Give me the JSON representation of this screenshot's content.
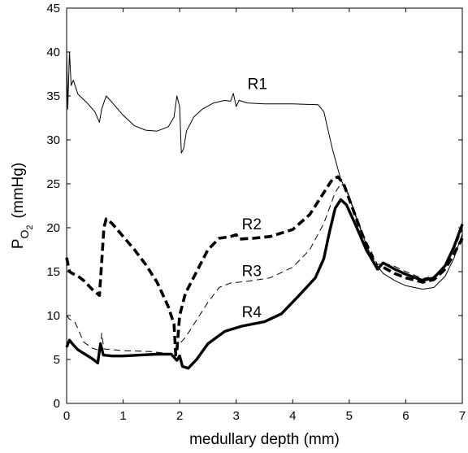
{
  "chart_data": {
    "type": "line",
    "xlabel": "medullary depth (mm)",
    "ylabel": {
      "main": "P",
      "sub1": "O",
      "sub2": "2",
      "unit": "(mmHg)"
    },
    "xlim": [
      0,
      7
    ],
    "ylim": [
      0,
      45
    ],
    "xticks": [
      0,
      1,
      2,
      3,
      4,
      5,
      6,
      7
    ],
    "yticks": [
      0,
      5,
      10,
      15,
      20,
      25,
      30,
      35,
      40,
      45
    ],
    "grid": false,
    "series": [
      {
        "name": "R1",
        "style": "thin-solid",
        "label_at": [
          3.2,
          35.8
        ],
        "points": [
          [
            0,
            40.5
          ],
          [
            0.02,
            33.5
          ],
          [
            0.05,
            40
          ],
          [
            0.08,
            36.2
          ],
          [
            0.12,
            36.8
          ],
          [
            0.2,
            35.2
          ],
          [
            0.35,
            34.3
          ],
          [
            0.5,
            33.2
          ],
          [
            0.58,
            32
          ],
          [
            0.62,
            33.5
          ],
          [
            0.7,
            35
          ],
          [
            0.8,
            34.3
          ],
          [
            1.0,
            32.8
          ],
          [
            1.2,
            31.6
          ],
          [
            1.4,
            31.1
          ],
          [
            1.6,
            31
          ],
          [
            1.8,
            31.5
          ],
          [
            1.9,
            32.6
          ],
          [
            1.95,
            35
          ],
          [
            2.0,
            33.8
          ],
          [
            2.03,
            28.5
          ],
          [
            2.07,
            29
          ],
          [
            2.12,
            31
          ],
          [
            2.25,
            32.6
          ],
          [
            2.4,
            33.5
          ],
          [
            2.6,
            34.2
          ],
          [
            2.8,
            34.5
          ],
          [
            2.9,
            34.4
          ],
          [
            2.95,
            35.3
          ],
          [
            3.0,
            33.8
          ],
          [
            3.05,
            34.5
          ],
          [
            3.2,
            34.2
          ],
          [
            3.5,
            34.1
          ],
          [
            4.0,
            34.1
          ],
          [
            4.45,
            34
          ],
          [
            4.55,
            33.2
          ],
          [
            4.7,
            29
          ],
          [
            4.85,
            25.5
          ],
          [
            5.0,
            23.5
          ],
          [
            5.2,
            19.8
          ],
          [
            5.4,
            16.5
          ],
          [
            5.6,
            14.8
          ],
          [
            5.8,
            14
          ],
          [
            6.0,
            13.4
          ],
          [
            6.3,
            13
          ],
          [
            6.5,
            13.2
          ],
          [
            6.7,
            14.5
          ],
          [
            6.85,
            16.5
          ],
          [
            7.0,
            19.3
          ]
        ]
      },
      {
        "name": "R2",
        "style": "thick-dashed",
        "label_at": [
          3.1,
          19.8
        ],
        "points": [
          [
            0,
            16.6
          ],
          [
            0.05,
            15
          ],
          [
            0.1,
            14.8
          ],
          [
            0.2,
            14.5
          ],
          [
            0.3,
            14
          ],
          [
            0.45,
            13
          ],
          [
            0.58,
            12.3
          ],
          [
            0.62,
            16
          ],
          [
            0.66,
            20
          ],
          [
            0.7,
            21
          ],
          [
            0.8,
            20.5
          ],
          [
            1.0,
            19
          ],
          [
            1.2,
            17.5
          ],
          [
            1.4,
            15.8
          ],
          [
            1.6,
            13.8
          ],
          [
            1.8,
            11
          ],
          [
            1.9,
            9
          ],
          [
            1.93,
            5.5
          ],
          [
            1.95,
            6
          ],
          [
            2.0,
            10
          ],
          [
            2.1,
            12.5
          ],
          [
            2.3,
            15
          ],
          [
            2.5,
            17.5
          ],
          [
            2.7,
            18.8
          ],
          [
            2.9,
            19
          ],
          [
            3.0,
            19.2
          ],
          [
            3.05,
            18.7
          ],
          [
            3.3,
            18.8
          ],
          [
            3.6,
            19
          ],
          [
            4.0,
            19.8
          ],
          [
            4.3,
            21.5
          ],
          [
            4.5,
            23.5
          ],
          [
            4.7,
            25.5
          ],
          [
            4.8,
            25.8
          ],
          [
            4.9,
            25
          ],
          [
            5.1,
            21.5
          ],
          [
            5.3,
            18
          ],
          [
            5.5,
            15.3
          ],
          [
            5.6,
            15.5
          ],
          [
            5.8,
            14.8
          ],
          [
            6.0,
            14.3
          ],
          [
            6.3,
            13.8
          ],
          [
            6.5,
            14.1
          ],
          [
            6.7,
            15.3
          ],
          [
            6.85,
            17
          ],
          [
            7.0,
            18.8
          ]
        ]
      },
      {
        "name": "R3",
        "style": "thin-dashed",
        "label_at": [
          3.1,
          14.5
        ],
        "points": [
          [
            0,
            10
          ],
          [
            0.05,
            9.6
          ],
          [
            0.1,
            9.4
          ],
          [
            0.15,
            9.2
          ],
          [
            0.2,
            8.5
          ],
          [
            0.3,
            7
          ],
          [
            0.45,
            6.3
          ],
          [
            0.6,
            6
          ],
          [
            0.62,
            8
          ],
          [
            0.66,
            6.2
          ],
          [
            1.0,
            6
          ],
          [
            1.5,
            5.9
          ],
          [
            1.9,
            5.6
          ],
          [
            1.95,
            6.2
          ],
          [
            2.0,
            6.8
          ],
          [
            2.1,
            7.5
          ],
          [
            2.3,
            9.5
          ],
          [
            2.5,
            11.5
          ],
          [
            2.7,
            13.2
          ],
          [
            2.9,
            13.7
          ],
          [
            3.2,
            13.9
          ],
          [
            3.6,
            14.3
          ],
          [
            4.0,
            15.5
          ],
          [
            4.3,
            17.5
          ],
          [
            4.55,
            20.5
          ],
          [
            4.75,
            24
          ],
          [
            4.85,
            25
          ],
          [
            4.95,
            24.5
          ],
          [
            5.1,
            21.5
          ],
          [
            5.3,
            18.5
          ],
          [
            5.5,
            15.8
          ],
          [
            5.6,
            16
          ],
          [
            5.8,
            15.6
          ],
          [
            6.0,
            15
          ],
          [
            6.3,
            14.2
          ],
          [
            6.5,
            14.5
          ],
          [
            6.7,
            15.7
          ],
          [
            6.85,
            17.5
          ],
          [
            7.0,
            19.8
          ]
        ]
      },
      {
        "name": "R4",
        "style": "thick-solid",
        "label_at": [
          3.1,
          9.8
        ],
        "points": [
          [
            0,
            6.4
          ],
          [
            0.05,
            7.2
          ],
          [
            0.1,
            6.8
          ],
          [
            0.2,
            6.1
          ],
          [
            0.3,
            5.7
          ],
          [
            0.45,
            5.1
          ],
          [
            0.55,
            4.6
          ],
          [
            0.6,
            6.8
          ],
          [
            0.65,
            5.5
          ],
          [
            0.8,
            5.4
          ],
          [
            1.0,
            5.4
          ],
          [
            1.3,
            5.5
          ],
          [
            1.6,
            5.6
          ],
          [
            1.85,
            5.6
          ],
          [
            1.95,
            4.9
          ],
          [
            2.0,
            5.4
          ],
          [
            2.05,
            4.2
          ],
          [
            2.15,
            4
          ],
          [
            2.3,
            5
          ],
          [
            2.5,
            6.8
          ],
          [
            2.8,
            8.2
          ],
          [
            3.1,
            8.8
          ],
          [
            3.5,
            9.3
          ],
          [
            3.8,
            10.2
          ],
          [
            4.1,
            12.2
          ],
          [
            4.4,
            14.3
          ],
          [
            4.55,
            16.5
          ],
          [
            4.65,
            19.5
          ],
          [
            4.75,
            22.2
          ],
          [
            4.85,
            23.2
          ],
          [
            4.95,
            22.6
          ],
          [
            5.1,
            20.5
          ],
          [
            5.3,
            17.5
          ],
          [
            5.5,
            15.3
          ],
          [
            5.6,
            16
          ],
          [
            5.8,
            15.3
          ],
          [
            6.0,
            14.7
          ],
          [
            6.3,
            14
          ],
          [
            6.5,
            14.3
          ],
          [
            6.7,
            15.7
          ],
          [
            6.85,
            17.8
          ],
          [
            7.0,
            20.4
          ]
        ]
      }
    ]
  }
}
